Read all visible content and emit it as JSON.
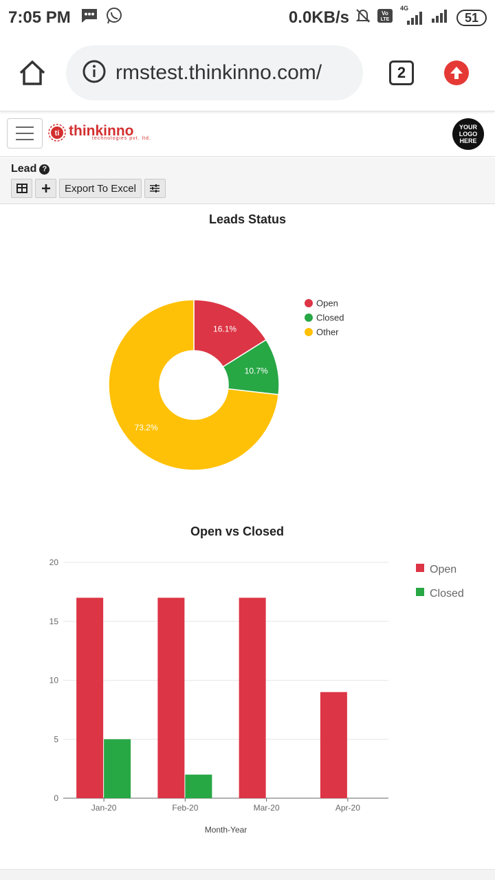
{
  "status_bar": {
    "time": "7:05 PM",
    "net_speed": "0.0KB/s",
    "signal_label": "4G",
    "battery": "51"
  },
  "browser": {
    "url": "rmstest.thinkinno.com/",
    "tab_count": "2"
  },
  "app": {
    "brand_name": "thinkinno",
    "brand_sub": "technologies pvt. ltd.",
    "logo_placeholder": "YOUR LOGO HERE"
  },
  "toolbar": {
    "title": "Lead",
    "export_label": "Export To Excel"
  },
  "colors": {
    "open": "#dc3545",
    "closed": "#28a745",
    "other": "#ffc107"
  },
  "chart_data": [
    {
      "type": "pie",
      "title": "Leads Status",
      "labels": [
        "Open",
        "Closed",
        "Other"
      ],
      "values": [
        16.1,
        10.7,
        73.2
      ],
      "value_labels": [
        "16.1%",
        "10.7%",
        "73.2%"
      ],
      "legend_position": "right"
    },
    {
      "type": "bar",
      "title": "Open vs Closed",
      "categories": [
        "Jan-20",
        "Feb-20",
        "Mar-20",
        "Apr-20"
      ],
      "series": [
        {
          "name": "Open",
          "values": [
            17,
            17,
            17,
            9
          ]
        },
        {
          "name": "Closed",
          "values": [
            5,
            2,
            0,
            0
          ]
        }
      ],
      "xlabel": "Month-Year",
      "ylabel": "",
      "ylim": [
        0,
        20
      ],
      "yticks": [
        "0",
        "5",
        "10",
        "15",
        "20"
      ],
      "legend_position": "top-right",
      "grid": true
    }
  ]
}
